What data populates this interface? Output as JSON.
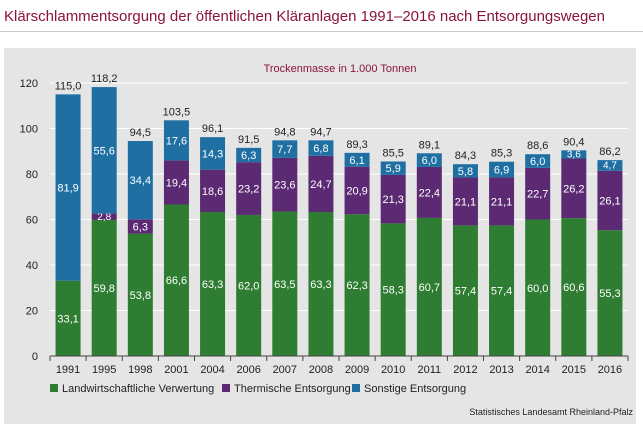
{
  "title": "Klärschlammentsorgung der öffentlichen Kläranlagen 1991–2016 nach Entsorgungswegen",
  "source": "Statistisches Landesamt Rheinland-Pfalz",
  "chart_data": {
    "type": "bar",
    "stacked": true,
    "subtitle": "Trockenmasse in 1.000 Tonnen",
    "categories": [
      "1991",
      "1995",
      "1998",
      "2001",
      "2004",
      "2006",
      "2007",
      "2008",
      "2009",
      "2010",
      "2011",
      "2012",
      "2013",
      "2014",
      "2015",
      "2016"
    ],
    "series": [
      {
        "name": "Landwirtschaftliche Verwertung",
        "color": "#2e7d32",
        "values": [
          33.1,
          59.8,
          53.8,
          66.6,
          63.3,
          62.0,
          63.5,
          63.3,
          62.3,
          58.3,
          60.7,
          57.4,
          57.4,
          60.0,
          60.6,
          55.3
        ],
        "labels": [
          "33,1",
          "59,8",
          "53,8",
          "66,6",
          "63,3",
          "62,0",
          "63,5",
          "63,3",
          "62,3",
          "58,3",
          "60,7",
          "57,4",
          "57,4",
          "60,0",
          "60,6",
          "55,3"
        ]
      },
      {
        "name": "Thermische Entsorgung",
        "color": "#5b2a73",
        "values": [
          0,
          2.8,
          6.3,
          19.4,
          18.6,
          23.2,
          23.6,
          24.7,
          20.9,
          21.3,
          22.4,
          21.1,
          21.1,
          22.7,
          26.2,
          26.1
        ],
        "labels": [
          "",
          "2,8",
          "6,3",
          "19,4",
          "18,6",
          "23,2",
          "23,6",
          "24,7",
          "20,9",
          "21,3",
          "22,4",
          "21,1",
          "21,1",
          "22,7",
          "26,2",
          "26,1"
        ]
      },
      {
        "name": "Sonstige Entsorgung",
        "color": "#1f6fa3",
        "values": [
          81.9,
          55.6,
          34.4,
          17.6,
          14.3,
          6.3,
          7.7,
          6.8,
          6.1,
          5.9,
          6.0,
          5.8,
          6.9,
          6.0,
          3.6,
          4.7
        ],
        "labels": [
          "81,9",
          "55,6",
          "34,4",
          "17,6",
          "14,3",
          "6,3",
          "7,7",
          "6,8",
          "6,1",
          "5,9",
          "6,0",
          "5,8",
          "6,9",
          "6,0",
          "3,6",
          "4,7"
        ]
      }
    ],
    "totals": [
      "115,0",
      "118,2",
      "94,5",
      "103,5",
      "96,1",
      "91,5",
      "94,8",
      "94,7",
      "89,3",
      "85,5",
      "89,1",
      "84,3",
      "85,3",
      "88,6",
      "90,4",
      "86,2"
    ],
    "yticks": [
      "0",
      "20",
      "40",
      "60",
      "80",
      "100",
      "120"
    ],
    "ylim": [
      0,
      120
    ],
    "grid": true,
    "legend": "bottom"
  }
}
